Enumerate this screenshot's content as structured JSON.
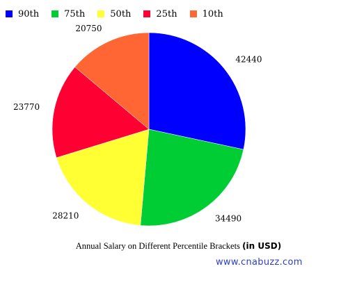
{
  "chart_data": {
    "type": "pie",
    "categories": [
      "90th",
      "75th",
      "50th",
      "25th",
      "10th"
    ],
    "values": [
      42440,
      34490,
      28210,
      23770,
      20750
    ],
    "colors": [
      "#0000ff",
      "#00cc33",
      "#ffff33",
      "#ff0033",
      "#ff6633"
    ],
    "title": "Annual Salary on Different Percentile Brackets",
    "title_suffix": "(in USD)",
    "legend_position": "top-left",
    "start_angle": "12 o'clock, clockwise"
  },
  "watermark": "www.cnabuzz.com"
}
